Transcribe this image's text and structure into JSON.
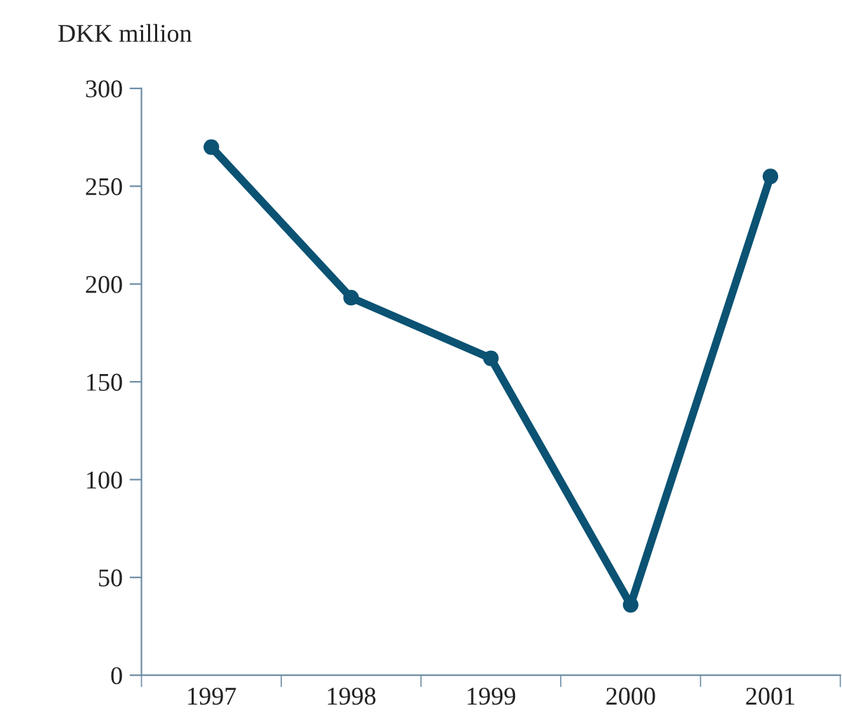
{
  "chart_data": {
    "type": "line",
    "ylabel": "DKK million",
    "categories": [
      "1997",
      "1998",
      "1999",
      "2000",
      "2001"
    ],
    "series": [
      {
        "color": "#0b5273",
        "values": [
          270,
          193,
          162,
          36,
          255
        ]
      }
    ],
    "ylim": [
      0,
      300
    ],
    "yticks": [
      0,
      50,
      100,
      150,
      200,
      250,
      300
    ],
    "marker": "circle",
    "line_style": "solid",
    "grid": false
  }
}
